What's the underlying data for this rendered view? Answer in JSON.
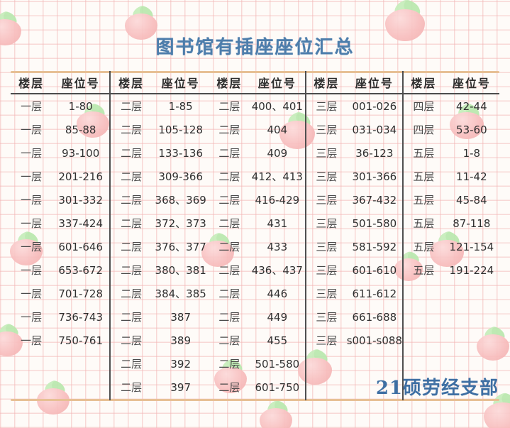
{
  "title": "图书馆有插座座位汇总",
  "footer": "21硕劳经支部",
  "decor": {
    "icon": "strawberry-icon"
  },
  "colors": {
    "title_blue": "#4d7dab",
    "footer_blue": "#3e6fa3",
    "line_tan": "#e7c095",
    "line_dark": "#4c4c4c",
    "grid_pink": "#f2b2b2",
    "berry_pink": "#f8bfbf",
    "leaf_green": "#c6edbb"
  },
  "table": {
    "row_slots": 13,
    "header": {
      "floor": "楼层",
      "seat": "座位号"
    },
    "pairs": [
      {
        "rows": [
          [
            "一层",
            "1-80"
          ],
          [
            "一层",
            "85-88"
          ],
          [
            "一层",
            "93-100"
          ],
          [
            "一层",
            "201-216"
          ],
          [
            "一层",
            "301-332"
          ],
          [
            "一层",
            "337-424"
          ],
          [
            "一层",
            "601-646"
          ],
          [
            "一层",
            "653-672"
          ],
          [
            "一层",
            "701-728"
          ],
          [
            "一层",
            "736-743"
          ],
          [
            "一层",
            "750-761"
          ]
        ]
      },
      {
        "rows": [
          [
            "二层",
            "1-85"
          ],
          [
            "二层",
            "105-128"
          ],
          [
            "二层",
            "133-136"
          ],
          [
            "二层",
            "309-366"
          ],
          [
            "二层",
            "368、369"
          ],
          [
            "二层",
            "372、373"
          ],
          [
            "二层",
            "376、377"
          ],
          [
            "二层",
            "380、381"
          ],
          [
            "二层",
            "384、385"
          ],
          [
            "二层",
            "387"
          ],
          [
            "二层",
            "389"
          ],
          [
            "二层",
            "392"
          ],
          [
            "二层",
            "397"
          ]
        ]
      },
      {
        "rows": [
          [
            "二层",
            "400、401"
          ],
          [
            "二层",
            "404"
          ],
          [
            "二层",
            "409"
          ],
          [
            "二层",
            "412、413"
          ],
          [
            "二层",
            "416-429"
          ],
          [
            "二层",
            "431"
          ],
          [
            "二层",
            "433"
          ],
          [
            "二层",
            "436、437"
          ],
          [
            "二层",
            "446"
          ],
          [
            "二层",
            "449"
          ],
          [
            "二层",
            "455"
          ],
          [
            "二层",
            "501-580"
          ],
          [
            "二层",
            "601-750"
          ]
        ]
      },
      {
        "rows": [
          [
            "三层",
            "001-026"
          ],
          [
            "三层",
            "031-034"
          ],
          [
            "三层",
            "36-123"
          ],
          [
            "三层",
            "301-366"
          ],
          [
            "三层",
            "367-432"
          ],
          [
            "三层",
            "501-580"
          ],
          [
            "三层",
            "581-592"
          ],
          [
            "三层",
            "601-610"
          ],
          [
            "三层",
            "611-612"
          ],
          [
            "三层",
            "661-688"
          ],
          [
            "三层",
            "s001-s088"
          ]
        ]
      },
      {
        "rows": [
          [
            "四层",
            "42-44"
          ],
          [
            "四层",
            "53-60"
          ],
          [
            "五层",
            "1-8"
          ],
          [
            "五层",
            "11-42"
          ],
          [
            "五层",
            "45-84"
          ],
          [
            "五层",
            "87-118"
          ],
          [
            "五层",
            "121-154"
          ],
          [
            "五层",
            "191-224"
          ]
        ]
      }
    ]
  }
}
